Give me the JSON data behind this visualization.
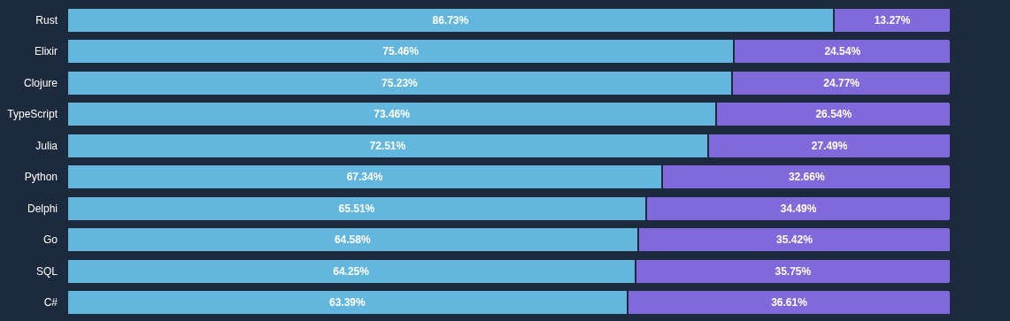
{
  "chart_data": {
    "type": "bar",
    "orientation": "horizontal",
    "stacked": true,
    "legend": false,
    "grid": false,
    "tick_labels": "y",
    "categories": [
      "Rust",
      "Elixir",
      "Clojure",
      "TypeScript",
      "Julia",
      "Python",
      "Delphi",
      "Go",
      "SQL",
      "C#"
    ],
    "series": [
      {
        "color": "#63b6dd",
        "values": [
          86.73,
          75.46,
          75.23,
          73.46,
          72.51,
          67.34,
          65.51,
          64.58,
          64.25,
          63.39
        ],
        "value_labels": [
          "86.73%",
          "75.46%",
          "75.23%",
          "73.46%",
          "72.51%",
          "67.34%",
          "65.51%",
          "64.58%",
          "64.25%",
          "63.39%"
        ]
      },
      {
        "color": "#7f69db",
        "values": [
          13.27,
          24.54,
          24.77,
          26.54,
          27.49,
          32.66,
          34.49,
          35.42,
          35.75,
          36.61
        ],
        "value_labels": [
          "13.27%",
          "24.54%",
          "24.77%",
          "26.54%",
          "27.49%",
          "32.66%",
          "34.49%",
          "35.42%",
          "35.75%",
          "36.61%"
        ]
      }
    ]
  }
}
